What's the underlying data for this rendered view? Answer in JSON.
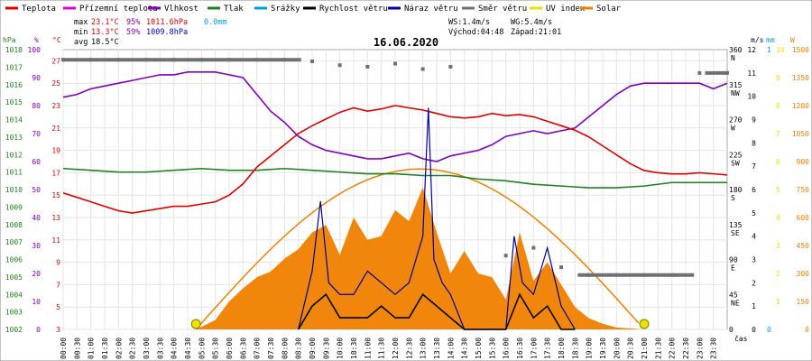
{
  "chart_data": {
    "type": "line",
    "title": "16.06.2020",
    "xlabel": "čas",
    "legend": [
      {
        "name": "Teplota",
        "color": "#e00000"
      },
      {
        "name": "Přízemní teplota",
        "color": "#e000e0"
      },
      {
        "name": "Vlhkost",
        "color": "#8000c0"
      },
      {
        "name": "Tlak",
        "color": "#208020"
      },
      {
        "name": "Srážky",
        "color": "#00a0e0"
      },
      {
        "name": "Rychlost větru",
        "color": "#000000"
      },
      {
        "name": "Náraz větru",
        "color": "#0000a0"
      },
      {
        "name": "Směr větru",
        "color": "#707070"
      },
      {
        "name": "UV index",
        "color": "#f0e000"
      },
      {
        "name": "Solar",
        "color": "#f08000"
      }
    ],
    "stats": {
      "max_label": "max",
      "max_temp": "23.1°C",
      "max_hum": "95%",
      "max_press": "1011.6hPa",
      "rain": "0.0mm",
      "min_label": "min",
      "min_temp": "13.3°C",
      "min_hum": "59%",
      "min_press": "1009.8hPa",
      "avg_label": "avg",
      "avg_temp": "18.5°C",
      "ws": "WS:1.4m/s",
      "wg": "WG:5.4m/s",
      "sunrise": "Východ:04:48",
      "sunset": "Západ:21:01"
    },
    "axes": {
      "left_units": [
        "hPa",
        "%",
        "°C"
      ],
      "right_units": [
        "m/s",
        "mm",
        "W"
      ],
      "hpa_ticks": [
        "1002",
        "1003",
        "1004",
        "1005",
        "1006",
        "1007",
        "1008",
        "1009",
        "1010",
        "1011",
        "1012",
        "1013",
        "1014",
        "1015",
        "1016",
        "1017",
        "1018"
      ],
      "hum_ticks": [
        "0",
        "10",
        "20",
        "30",
        "40",
        "50",
        "60",
        "70",
        "80",
        "90",
        "100"
      ],
      "temp_ticks": [
        "3",
        "5",
        "7",
        "9",
        "11",
        "13",
        "15",
        "17",
        "19",
        "21",
        "23",
        "25",
        "27"
      ],
      "dir_ticks": [
        "0",
        "45\nNE",
        "90\nE",
        "135\nSE",
        "180\nS",
        "225\nSW",
        "270\nW",
        "315\nNW",
        "360\nN"
      ],
      "ms_ticks": [
        "0",
        "1",
        "2",
        "3",
        "4",
        "5",
        "6",
        "7",
        "8",
        "9",
        "10",
        "11",
        "12"
      ],
      "mm_ticks": [
        "0",
        "1"
      ],
      "w_ticks": [
        "0",
        "150",
        "300",
        "450",
        "600",
        "750",
        "900",
        "1050",
        "1200",
        "1350",
        "1500"
      ]
    },
    "x_ticks": [
      "00:00",
      "00:30",
      "01:00",
      "01:30",
      "02:00",
      "02:30",
      "03:00",
      "03:30",
      "04:00",
      "04:30",
      "05:00",
      "05:30",
      "06:00",
      "06:30",
      "07:00",
      "07:30",
      "08:00",
      "08:30",
      "09:00",
      "09:30",
      "10:00",
      "10:30",
      "11:00",
      "11:30",
      "12:00",
      "12:30",
      "13:00",
      "13:30",
      "14:00",
      "14:30",
      "15:00",
      "15:30",
      "16:00",
      "16:30",
      "17:00",
      "17:30",
      "18:00",
      "18:30",
      "19:00",
      "19:30",
      "20:00",
      "20:30",
      "21:00",
      "21:30",
      "22:00",
      "22:30",
      "23:00",
      "23:30"
    ],
    "x_hours": [
      0,
      0.5,
      1,
      1.5,
      2,
      2.5,
      3,
      3.5,
      4,
      4.5,
      5,
      5.5,
      6,
      6.5,
      7,
      7.5,
      8,
      8.5,
      9,
      9.5,
      10,
      10.5,
      11,
      11.5,
      12,
      12.5,
      13,
      13.5,
      14,
      14.5,
      15,
      15.5,
      16,
      16.5,
      17,
      17.5,
      18,
      18.5,
      19,
      19.5,
      20,
      20.5,
      21,
      21.5,
      22,
      22.5,
      23,
      23.5
    ],
    "series": [
      {
        "name": "Teplota",
        "unit": "°C",
        "color": "#e00000",
        "x": [
          0,
          0.5,
          1,
          1.5,
          2,
          2.5,
          3,
          3.5,
          4,
          4.5,
          5,
          5.5,
          6,
          6.5,
          7,
          7.5,
          8,
          8.5,
          9,
          9.5,
          10,
          10.5,
          11,
          11.5,
          12,
          12.5,
          13,
          13.5,
          14,
          14.5,
          15,
          15.5,
          16,
          16.5,
          17,
          17.5,
          18,
          18.5,
          19,
          19.5,
          20,
          20.5,
          21,
          21.5,
          22,
          22.5,
          23,
          23.5,
          24
        ],
        "y": [
          15.2,
          14.8,
          14.4,
          14.0,
          13.6,
          13.4,
          13.6,
          13.8,
          14.0,
          14.0,
          14.2,
          14.4,
          15.0,
          16.0,
          17.5,
          18.5,
          19.5,
          20.5,
          21.2,
          21.8,
          22.4,
          22.8,
          22.5,
          22.7,
          23.0,
          22.8,
          22.6,
          22.3,
          22.0,
          21.9,
          22.0,
          22.3,
          22.1,
          22.2,
          22.0,
          21.6,
          21.2,
          20.8,
          20.2,
          19.4,
          18.6,
          17.8,
          17.2,
          17.0,
          16.9,
          16.9,
          17.0,
          16.9,
          16.8
        ]
      },
      {
        "name": "Vlhkost",
        "unit": "%",
        "color": "#8000c0",
        "x": [
          0,
          0.5,
          1,
          1.5,
          2,
          2.5,
          3,
          3.5,
          4,
          4.5,
          5,
          5.5,
          6,
          6.5,
          7,
          7.5,
          8,
          8.5,
          9,
          9.5,
          10,
          10.5,
          11,
          11.5,
          12,
          12.5,
          13,
          13.5,
          14,
          14.5,
          15,
          15.5,
          16,
          16.5,
          17,
          17.5,
          18,
          18.5,
          19,
          19.5,
          20,
          20.5,
          21,
          21.5,
          22,
          22.5,
          23,
          23.5,
          24
        ],
        "y": [
          83,
          84,
          86,
          87,
          88,
          89,
          90,
          91,
          91,
          92,
          92,
          92,
          91,
          90,
          84,
          78,
          74,
          69,
          66,
          64,
          63,
          62,
          61,
          61,
          62,
          63,
          61,
          60,
          62,
          63,
          64,
          66,
          69,
          70,
          71,
          70,
          71,
          72,
          76,
          80,
          84,
          87,
          88,
          88,
          88,
          88,
          88,
          86,
          88
        ]
      },
      {
        "name": "Tlak",
        "unit": "hPa",
        "color": "#208020",
        "x": [
          0,
          1,
          2,
          3,
          4,
          5,
          6,
          7,
          8,
          9,
          10,
          11,
          12,
          13,
          14,
          15,
          16,
          17,
          18,
          19,
          20,
          21,
          22,
          23,
          24
        ],
        "y": [
          1011.2,
          1011.1,
          1011.0,
          1011.0,
          1011.1,
          1011.2,
          1011.1,
          1011.1,
          1011.2,
          1011.1,
          1011.0,
          1010.9,
          1010.9,
          1010.8,
          1010.8,
          1010.6,
          1010.5,
          1010.3,
          1010.2,
          1010.1,
          1010.1,
          1010.2,
          1010.4,
          1010.4,
          1010.4
        ]
      },
      {
        "name": "Solar",
        "unit": "W",
        "color": "#f08000",
        "x": [
          4.8,
          5.5,
          6,
          6.5,
          7,
          7.5,
          8,
          8.5,
          9,
          9.5,
          10,
          10.5,
          11,
          11.5,
          12,
          12.5,
          13,
          13.5,
          14,
          14.5,
          15,
          15.5,
          16,
          16.5,
          17,
          17.5,
          18,
          18.5,
          19,
          19.5,
          20,
          21
        ],
        "y": [
          0,
          50,
          150,
          220,
          280,
          310,
          380,
          430,
          520,
          560,
          400,
          600,
          480,
          500,
          640,
          580,
          760,
          520,
          300,
          420,
          300,
          280,
          160,
          520,
          260,
          360,
          240,
          120,
          60,
          30,
          10,
          0
        ]
      },
      {
        "name": "Náraz větru",
        "unit": "m/s",
        "color": "#0000a0",
        "x": [
          8.5,
          9,
          9.3,
          9.6,
          10,
          10.5,
          11,
          11.5,
          12,
          12.5,
          13,
          13.2,
          13.4,
          13.7,
          14,
          14.5,
          15,
          15.5,
          16,
          16.3,
          16.6,
          17,
          17.5,
          18,
          18.5
        ],
        "y": [
          0,
          2.5,
          5.5,
          2.0,
          1.5,
          1.5,
          2.5,
          2.0,
          1.5,
          2.0,
          4.0,
          9.5,
          3.0,
          2.0,
          1.5,
          0,
          0,
          0,
          0,
          4.0,
          2.0,
          1.5,
          3.5,
          1.0,
          0
        ]
      },
      {
        "name": "Rychlost větru",
        "unit": "m/s",
        "color": "#000000",
        "x": [
          8.5,
          9,
          9.5,
          10,
          10.5,
          11,
          11.5,
          12,
          12.5,
          13,
          13.5,
          14,
          14.5,
          15,
          15.5,
          16,
          16.5,
          17,
          17.5,
          18,
          18.5
        ],
        "y": [
          0,
          1.0,
          1.5,
          0.5,
          0.5,
          0.5,
          1.0,
          0.5,
          0.5,
          1.5,
          1.0,
          0.5,
          0,
          0,
          0,
          0,
          1.5,
          0.5,
          1.0,
          0,
          0
        ]
      },
      {
        "name": "Směr větru",
        "unit": "°",
        "color": "#707070",
        "x": [
          0,
          1,
          2,
          3,
          4,
          5,
          6,
          7,
          8,
          9,
          10,
          11,
          12,
          13,
          14,
          16,
          17,
          18,
          19,
          20,
          21,
          22,
          23,
          24
        ],
        "y": [
          347,
          347,
          347,
          347,
          347,
          347,
          347,
          347,
          347,
          345,
          340,
          338,
          342,
          335,
          338,
          95,
          105,
          80,
          70,
          70,
          70,
          70,
          330,
          330
        ]
      }
    ],
    "ylim_temp": [
      3,
      28
    ],
    "ylim_hum": [
      0,
      100
    ],
    "ylim_hpa": [
      1002,
      1018
    ],
    "ylim_ms": [
      0,
      12
    ],
    "ylim_w": [
      0,
      1500
    ],
    "ylim_dir": [
      0,
      360
    ]
  }
}
